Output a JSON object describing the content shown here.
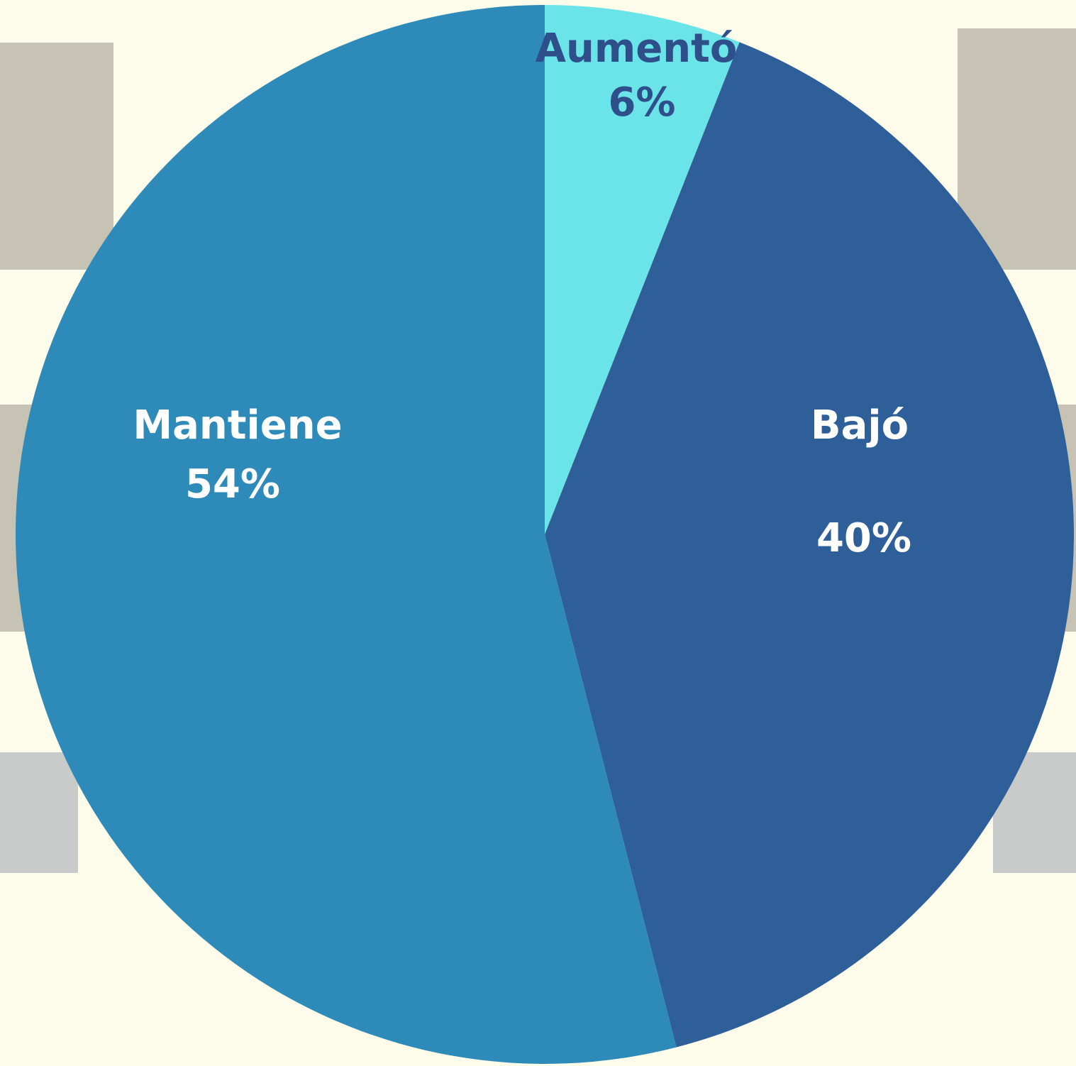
{
  "chart_data": {
    "type": "pie",
    "categories": [
      "Aumentó",
      "Bajó",
      "Mantiene"
    ],
    "values": [
      6,
      40,
      54
    ],
    "value_labels": [
      "6%",
      "40%",
      "54%"
    ],
    "colors": [
      "#6ae4e8",
      "#2f5f98",
      "#2e8ab8"
    ],
    "start_angle": 90,
    "direction": "clockwise"
  }
}
